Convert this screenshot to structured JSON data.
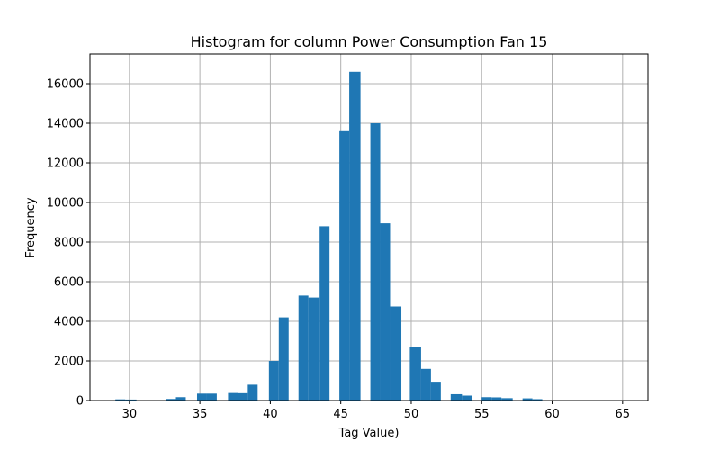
{
  "chart_data": {
    "type": "bar",
    "title": "Histogram for column Power Consumption Fan 15",
    "xlabel": "Tag Value)",
    "ylabel": "Frequency",
    "xlim": [
      27.2,
      66.8
    ],
    "ylim": [
      0,
      17500
    ],
    "xticks": [
      30,
      35,
      40,
      45,
      50,
      55,
      60,
      65
    ],
    "yticks": [
      0,
      2000,
      4000,
      6000,
      8000,
      10000,
      12000,
      14000,
      16000
    ],
    "grid": true,
    "bar_color": "#1f77b4",
    "bins": [
      {
        "x0": 29.0,
        "x1": 29.7,
        "value": 60
      },
      {
        "x0": 29.7,
        "x1": 30.5,
        "value": 50
      },
      {
        "x0": 32.6,
        "x1": 33.3,
        "value": 80
      },
      {
        "x0": 33.3,
        "x1": 34.0,
        "value": 170
      },
      {
        "x0": 34.8,
        "x1": 35.5,
        "value": 350
      },
      {
        "x0": 35.5,
        "x1": 36.2,
        "value": 350
      },
      {
        "x0": 37.0,
        "x1": 37.7,
        "value": 380
      },
      {
        "x0": 37.7,
        "x1": 38.4,
        "value": 370
      },
      {
        "x0": 38.4,
        "x1": 39.1,
        "value": 800
      },
      {
        "x0": 39.9,
        "x1": 40.6,
        "value": 2000
      },
      {
        "x0": 40.6,
        "x1": 41.3,
        "value": 4200
      },
      {
        "x0": 42.0,
        "x1": 42.7,
        "value": 5300
      },
      {
        "x0": 42.7,
        "x1": 43.5,
        "value": 5200
      },
      {
        "x0": 43.5,
        "x1": 44.2,
        "value": 8800
      },
      {
        "x0": 44.9,
        "x1": 45.6,
        "value": 13600
      },
      {
        "x0": 45.6,
        "x1": 46.4,
        "value": 16600
      },
      {
        "x0": 47.1,
        "x1": 47.8,
        "value": 14000
      },
      {
        "x0": 47.8,
        "x1": 48.5,
        "value": 8950
      },
      {
        "x0": 48.5,
        "x1": 49.3,
        "value": 4750
      },
      {
        "x0": 49.9,
        "x1": 50.7,
        "value": 2700
      },
      {
        "x0": 50.7,
        "x1": 51.4,
        "value": 1600
      },
      {
        "x0": 51.4,
        "x1": 52.1,
        "value": 950
      },
      {
        "x0": 52.8,
        "x1": 53.6,
        "value": 320
      },
      {
        "x0": 53.6,
        "x1": 54.3,
        "value": 250
      },
      {
        "x0": 55.0,
        "x1": 55.7,
        "value": 170
      },
      {
        "x0": 55.7,
        "x1": 56.4,
        "value": 160
      },
      {
        "x0": 56.4,
        "x1": 57.2,
        "value": 120
      },
      {
        "x0": 57.9,
        "x1": 58.6,
        "value": 110
      },
      {
        "x0": 58.6,
        "x1": 59.3,
        "value": 70
      },
      {
        "x0": 59.3,
        "x1": 60.1,
        "value": 20
      },
      {
        "x0": 60.8,
        "x1": 61.5,
        "value": 10
      },
      {
        "x0": 61.5,
        "x1": 62.2,
        "value": 10
      },
      {
        "x0": 64.4,
        "x1": 65.1,
        "value": 5
      }
    ]
  }
}
